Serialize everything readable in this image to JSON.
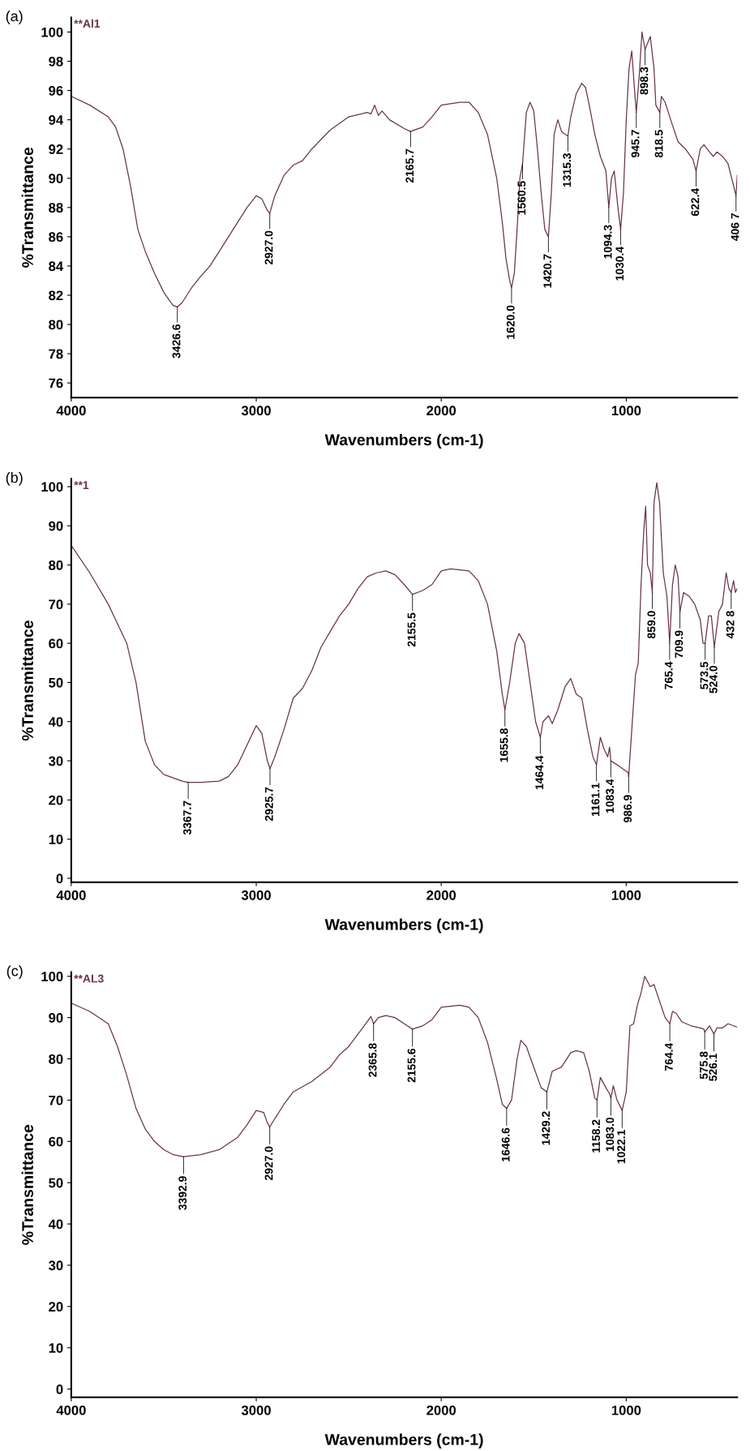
{
  "chart_data": [
    {
      "type": "line",
      "xlabel": "Wavenumbers (cm-1)",
      "ylabel": "%Transmittance",
      "xlim": [
        4000,
        400
      ],
      "xticks": [
        4000,
        3000,
        2000,
        1000
      ],
      "ylim": [
        75,
        101
      ],
      "yticks": [
        76,
        78,
        80,
        82,
        84,
        86,
        88,
        90,
        92,
        94,
        96,
        98,
        100
      ],
      "x": [
        4000,
        3900,
        3800,
        3760,
        3720,
        3680,
        3640,
        3600,
        3550,
        3500,
        3450,
        3426.6,
        3400,
        3350,
        3300,
        3250,
        3200,
        3150,
        3100,
        3050,
        3000,
        2970,
        2940,
        2927,
        2900,
        2850,
        2800,
        2750,
        2700,
        2600,
        2500,
        2400,
        2380,
        2360,
        2340,
        2320,
        2280,
        2200,
        2165.7,
        2100,
        2050,
        2000,
        1900,
        1850,
        1800,
        1750,
        1700,
        1670,
        1650,
        1630,
        1620,
        1605,
        1590,
        1575,
        1560.5,
        1540,
        1520,
        1500,
        1480,
        1460,
        1440,
        1420.7,
        1405,
        1390,
        1370,
        1350,
        1330,
        1315.3,
        1300,
        1270,
        1240,
        1220,
        1200,
        1170,
        1140,
        1110,
        1094.3,
        1080,
        1065,
        1045,
        1030.4,
        1015,
        1000,
        985,
        970,
        955,
        945.7,
        930,
        915,
        898.3,
        870,
        850,
        840,
        818.5,
        810,
        790,
        760,
        720,
        680,
        640,
        622.4,
        600,
        580,
        550,
        530,
        510,
        480,
        450,
        420,
        406.7,
        400
      ],
      "series": [
        {
          "color": "#6b3447",
          "values": [
            95.6,
            95.0,
            94.2,
            93.5,
            92.0,
            89.5,
            86.5,
            85.0,
            83.5,
            82.2,
            81.3,
            81.2,
            81.5,
            82.5,
            83.3,
            84.0,
            85.0,
            86.0,
            87.0,
            88.0,
            88.8,
            88.6,
            87.8,
            87.6,
            88.8,
            90.2,
            90.9,
            91.2,
            92.0,
            93.3,
            94.2,
            94.5,
            94.4,
            95.0,
            94.3,
            94.6,
            94.0,
            93.4,
            93.2,
            93.5,
            94.2,
            95.0,
            95.2,
            95.2,
            94.5,
            93.0,
            90.0,
            87.0,
            84.5,
            83.0,
            82.5,
            83.5,
            86.5,
            90.0,
            91.0,
            94.5,
            95.2,
            94.6,
            92.0,
            89.0,
            86.5,
            86.0,
            89.0,
            93.0,
            94.0,
            93.2,
            93.0,
            92.9,
            94.2,
            95.8,
            96.5,
            96.2,
            95.0,
            93.0,
            91.5,
            90.5,
            88.0,
            90.0,
            90.5,
            88.0,
            86.5,
            89.0,
            94.0,
            97.5,
            98.7,
            96.0,
            94.5,
            97.0,
            100.0,
            98.8,
            99.7,
            97.5,
            95.0,
            94.5,
            95.6,
            95.2,
            94.0,
            92.5,
            92.0,
            91.3,
            90.5,
            92.0,
            92.3,
            91.8,
            91.5,
            91.8,
            91.5,
            91.0,
            89.5,
            88.8,
            90.2
          ]
        }
      ],
      "annotations": [
        "(a)",
        "**Al1",
        {
          "text": "3426.6",
          "x": 3426.6,
          "y": 81.2
        },
        {
          "text": "2927.0",
          "x": 2927.0,
          "y": 87.6
        },
        {
          "text": "2165.7",
          "x": 2165.7,
          "y": 93.2
        },
        {
          "text": "1620.0",
          "x": 1620.0,
          "y": 82.5
        },
        {
          "text": "1560.5",
          "x": 1560.5,
          "y": 91.0
        },
        {
          "text": "1420.7",
          "x": 1420.7,
          "y": 86.0
        },
        {
          "text": "1315.3",
          "x": 1315.3,
          "y": 92.9
        },
        {
          "text": "1094.3",
          "x": 1094.3,
          "y": 88.0
        },
        {
          "text": "1030.4",
          "x": 1030.4,
          "y": 86.5
        },
        {
          "text": "945.7",
          "x": 945.7,
          "y": 94.5
        },
        {
          "text": "898.3",
          "x": 898.3,
          "y": 98.8
        },
        {
          "text": "818.5",
          "x": 818.5,
          "y": 94.5
        },
        {
          "text": "622.4",
          "x": 622.4,
          "y": 90.5
        },
        {
          "text": "406 7",
          "x": 406.7,
          "y": 88.8
        }
      ]
    },
    {
      "type": "line",
      "xlabel": "Wavenumbers (cm-1)",
      "ylabel": "%Transmittance",
      "xlim": [
        4000,
        400
      ],
      "xticks": [
        4000,
        3000,
        2000,
        1000
      ],
      "ylim": [
        -1,
        102
      ],
      "yticks": [
        0,
        10,
        20,
        30,
        40,
        50,
        60,
        70,
        80,
        90,
        100
      ],
      "x": [
        4000,
        3900,
        3800,
        3700,
        3650,
        3600,
        3550,
        3500,
        3400,
        3367.7,
        3300,
        3200,
        3150,
        3100,
        3050,
        3000,
        2970,
        2940,
        2925.7,
        2900,
        2850,
        2800,
        2750,
        2700,
        2650,
        2600,
        2550,
        2500,
        2450,
        2400,
        2350,
        2300,
        2250,
        2200,
        2155.5,
        2100,
        2050,
        2000,
        1950,
        1850,
        1800,
        1750,
        1700,
        1670,
        1655.8,
        1630,
        1600,
        1580,
        1550,
        1520,
        1490,
        1464.4,
        1450,
        1420,
        1400,
        1370,
        1330,
        1300,
        1270,
        1240,
        1210,
        1180,
        1161.1,
        1140,
        1120,
        1100,
        1090,
        1083.4,
        1050,
        1020,
        990,
        986.9,
        970,
        950,
        935,
        920,
        905,
        895,
        885,
        870,
        859.0,
        850,
        835,
        820,
        800,
        780,
        765.4,
        750,
        735,
        720,
        709.9,
        690,
        660,
        630,
        600,
        585,
        573.5,
        555,
        540,
        524.0,
        500,
        480,
        460,
        445,
        432.8,
        420,
        410,
        400
      ],
      "series": [
        {
          "color": "#6b3447",
          "values": [
            85,
            78,
            70,
            60,
            50,
            35,
            29,
            26.5,
            24.8,
            24.5,
            24.5,
            24.8,
            26,
            29,
            34,
            39,
            37,
            30,
            28,
            31,
            38,
            46,
            48.5,
            53,
            59,
            63,
            67,
            70,
            74,
            77,
            78,
            78.5,
            77.5,
            75,
            72.5,
            73.5,
            75,
            78.5,
            79,
            78.5,
            76,
            70,
            58,
            47,
            43,
            50,
            60,
            62.5,
            60,
            50,
            40,
            36,
            40,
            41.5,
            39.5,
            43,
            49,
            51,
            47,
            46,
            38,
            31,
            29,
            36,
            33,
            31,
            33.5,
            30,
            29,
            28,
            27,
            26,
            38,
            52,
            55,
            75,
            89,
            95,
            80,
            78,
            73,
            96,
            101,
            96,
            78,
            72,
            60,
            75,
            80,
            77,
            68,
            73,
            72,
            70,
            66,
            60,
            60,
            67,
            67,
            59,
            68,
            70,
            78,
            74,
            73,
            76,
            73,
            74
          ]
        }
      ],
      "annotations": [
        "(b)",
        "**1",
        {
          "text": "3367.7",
          "x": 3367.7,
          "y": 24.5
        },
        {
          "text": "2925.7",
          "x": 2925.7,
          "y": 28
        },
        {
          "text": "2155.5",
          "x": 2155.5,
          "y": 72.5
        },
        {
          "text": "1655.8",
          "x": 1655.8,
          "y": 43
        },
        {
          "text": "1464.4",
          "x": 1464.4,
          "y": 36
        },
        {
          "text": "1161.1",
          "x": 1161.1,
          "y": 29
        },
        {
          "text": "1083.4",
          "x": 1083.4,
          "y": 30
        },
        {
          "text": "986.9",
          "x": 986.9,
          "y": 26
        },
        {
          "text": "859.0",
          "x": 859.0,
          "y": 73
        },
        {
          "text": "765.4",
          "x": 765.4,
          "y": 60
        },
        {
          "text": "709.9",
          "x": 709.9,
          "y": 68
        },
        {
          "text": "573.5",
          "x": 573.5,
          "y": 60
        },
        {
          "text": "524.0",
          "x": 524.0,
          "y": 59
        },
        {
          "text": "432 8",
          "x": 432.8,
          "y": 73
        }
      ]
    },
    {
      "type": "line",
      "xlabel": "Wavenumbers (cm-1)",
      "ylabel": "%Transmittance",
      "xlim": [
        4000,
        400
      ],
      "xticks": [
        4000,
        3000,
        2000,
        1000
      ],
      "ylim": [
        -2,
        101
      ],
      "yticks": [
        0,
        10,
        20,
        30,
        40,
        50,
        60,
        70,
        80,
        90,
        100
      ],
      "x": [
        4000,
        3900,
        3800,
        3750,
        3700,
        3650,
        3600,
        3550,
        3500,
        3450,
        3392.9,
        3300,
        3200,
        3100,
        3050,
        3000,
        2960,
        2940,
        2927.0,
        2900,
        2850,
        2800,
        2700,
        2600,
        2550,
        2500,
        2450,
        2400,
        2380,
        2365.8,
        2340,
        2300,
        2250,
        2200,
        2155.6,
        2100,
        2050,
        2000,
        1900,
        1850,
        1800,
        1750,
        1700,
        1670,
        1646.6,
        1620,
        1590,
        1570,
        1540,
        1500,
        1460,
        1429.2,
        1400,
        1350,
        1300,
        1270,
        1230,
        1200,
        1170,
        1158.2,
        1140,
        1110,
        1090,
        1083.0,
        1070,
        1050,
        1022.1,
        1000,
        980,
        960,
        940,
        920,
        900,
        870,
        850,
        820,
        790,
        764.4,
        750,
        730,
        700,
        650,
        600,
        580,
        575.8,
        550,
        526.1,
        510,
        480,
        450,
        420,
        400
      ],
      "series": [
        {
          "color": "#6b3447",
          "values": [
            93.5,
            91.5,
            88.5,
            83,
            76,
            68,
            63,
            60,
            58,
            56.8,
            56.3,
            56.8,
            58,
            61,
            64,
            67.5,
            67,
            64.5,
            63.5,
            65.5,
            69,
            72,
            74.5,
            78,
            81,
            83,
            86,
            89,
            90.3,
            88.5,
            90,
            90.5,
            90,
            88.5,
            87.2,
            88,
            89.5,
            92.5,
            93,
            92.5,
            90,
            84,
            75,
            69,
            68,
            70,
            80,
            84.5,
            83,
            78,
            73,
            72,
            77,
            78,
            81.5,
            82,
            81.5,
            77,
            70.5,
            70,
            75.5,
            73,
            71.5,
            70.5,
            73.5,
            70,
            67.5,
            72,
            88,
            88.5,
            93,
            96,
            100,
            97.5,
            98,
            94,
            90,
            88.5,
            91.5,
            91,
            89,
            88,
            87.5,
            87.2,
            86.5,
            88,
            86,
            87.5,
            87.5,
            88.5,
            88,
            87.7
          ]
        }
      ],
      "annotations": [
        "(c)",
        "**AL3",
        {
          "text": "3392.9",
          "x": 3392.9,
          "y": 56.3
        },
        {
          "text": "2927.0",
          "x": 2927.0,
          "y": 63.5
        },
        {
          "text": "2365.8",
          "x": 2365.8,
          "y": 88.5
        },
        {
          "text": "2155.6",
          "x": 2155.6,
          "y": 87.2
        },
        {
          "text": "1646.6",
          "x": 1646.6,
          "y": 68
        },
        {
          "text": "1429.2",
          "x": 1429.2,
          "y": 72
        },
        {
          "text": "1158.2",
          "x": 1158.2,
          "y": 70
        },
        {
          "text": "1083.0",
          "x": 1083.0,
          "y": 70.5
        },
        {
          "text": "1022.1",
          "x": 1022.1,
          "y": 67.5
        },
        {
          "text": "764.4",
          "x": 764.4,
          "y": 88.5
        },
        {
          "text": "575.8",
          "x": 575.8,
          "y": 86.5
        },
        {
          "text": "526.1",
          "x": 526.1,
          "y": 86
        }
      ]
    }
  ]
}
